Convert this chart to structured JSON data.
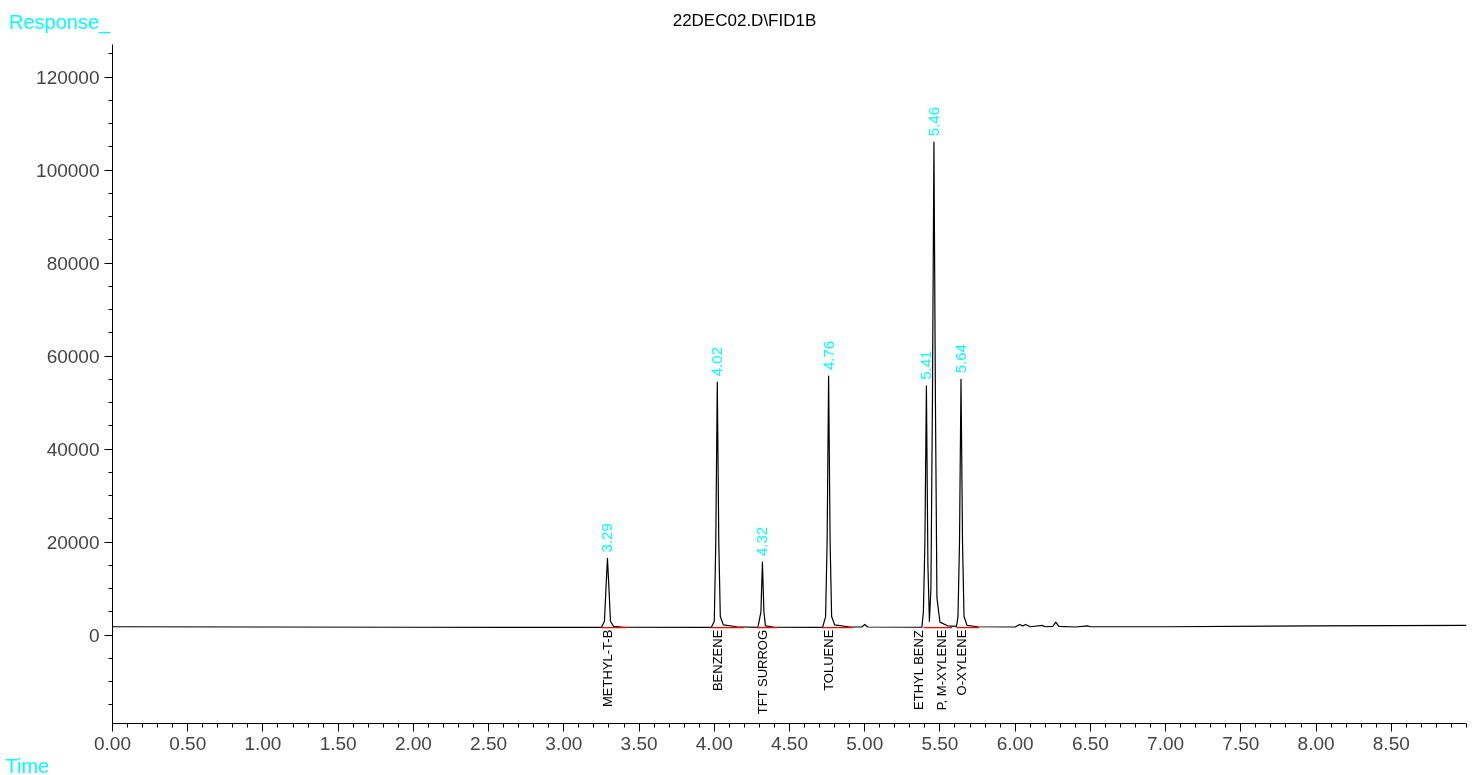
{
  "chart_data": {
    "type": "line",
    "title": "22DEC02.D\\FID1B",
    "xlabel": "Time",
    "ylabel": "Response_",
    "xlim": [
      0,
      9.0
    ],
    "ylim": [
      -19000,
      127000
    ],
    "xticks": [
      {
        "value": 0,
        "label": "0.00"
      },
      {
        "value": 0.5,
        "label": "0.50"
      },
      {
        "value": 1,
        "label": "1.00"
      },
      {
        "value": 1.5,
        "label": "1.50"
      },
      {
        "value": 2,
        "label": "2.00"
      },
      {
        "value": 2.5,
        "label": "2.50"
      },
      {
        "value": 3,
        "label": "3.00"
      },
      {
        "value": 3.5,
        "label": "3.50"
      },
      {
        "value": 4,
        "label": "4.00"
      },
      {
        "value": 4.5,
        "label": "4.50"
      },
      {
        "value": 5,
        "label": "5.00"
      },
      {
        "value": 5.5,
        "label": "5.50"
      },
      {
        "value": 6,
        "label": "6.00"
      },
      {
        "value": 6.5,
        "label": "6.50"
      },
      {
        "value": 7,
        "label": "7.00"
      },
      {
        "value": 7.5,
        "label": "7.50"
      },
      {
        "value": 8,
        "label": "8.00"
      },
      {
        "value": 8.5,
        "label": "8.50"
      }
    ],
    "yticks": [
      0,
      20000,
      40000,
      60000,
      80000,
      100000,
      120000
    ],
    "grid": false,
    "series": [
      {
        "color": "#000000",
        "x": [
          0,
          1.0,
          2.0,
          3.0,
          3.25,
          3.27,
          3.28,
          3.29,
          3.3,
          3.31,
          3.33,
          3.4,
          3.98,
          4.0,
          4.01,
          4.02,
          4.03,
          4.04,
          4.06,
          4.15,
          4.29,
          4.31,
          4.32,
          4.33,
          4.34,
          4.4,
          4.72,
          4.74,
          4.75,
          4.76,
          4.77,
          4.78,
          4.8,
          4.9,
          4.98,
          5.0,
          5.02,
          5.38,
          5.39,
          5.4,
          5.41,
          5.42,
          5.43,
          5.44,
          5.45,
          5.46,
          5.47,
          5.48,
          5.5,
          5.55,
          5.61,
          5.62,
          5.63,
          5.64,
          5.65,
          5.66,
          5.68,
          5.75,
          6.0,
          6.03,
          6.05,
          6.07,
          6.1,
          6.18,
          6.2,
          6.25,
          6.27,
          6.29,
          6.4,
          6.48,
          6.5,
          7.0,
          8.0,
          9.0
        ],
        "values": [
          1800,
          1750,
          1700,
          1650,
          1650,
          3000,
          10000,
          16500,
          10000,
          3000,
          1900,
          1700,
          1650,
          3000,
          20000,
          54400,
          20000,
          4000,
          2200,
          1800,
          1650,
          5000,
          15700,
          5000,
          2000,
          1700,
          1650,
          4000,
          20000,
          55700,
          20000,
          4000,
          2200,
          1750,
          1750,
          2300,
          1750,
          1700,
          5000,
          20000,
          53600,
          15000,
          3000,
          10000,
          50000,
          106000,
          50000,
          8000,
          2800,
          2000,
          1900,
          4000,
          20000,
          55000,
          20000,
          4000,
          2100,
          1800,
          1750,
          2300,
          2000,
          2300,
          1800,
          2100,
          1800,
          1900,
          2800,
          1900,
          1750,
          2000,
          1800,
          1800,
          2000,
          2100
        ]
      },
      {
        "color": "#ff0000",
        "x": [
          3.25,
          3.42
        ],
        "values": [
          1600,
          1600
        ]
      },
      {
        "color": "#ff0000",
        "x": [
          3.98,
          4.2
        ],
        "values": [
          1600,
          1600
        ]
      },
      {
        "color": "#ff0000",
        "x": [
          4.28,
          4.42
        ],
        "values": [
          1600,
          1600
        ]
      },
      {
        "color": "#ff0000",
        "x": [
          4.72,
          4.92
        ],
        "values": [
          1600,
          1600
        ]
      },
      {
        "color": "#ff0000",
        "x": [
          5.39,
          5.58
        ],
        "values": [
          1600,
          1600
        ]
      },
      {
        "color": "#ff0000",
        "x": [
          5.61,
          5.76
        ],
        "values": [
          1600,
          1600
        ]
      }
    ],
    "annotations": [
      {
        "text": "3.29",
        "x": 3.29,
        "y": 16500
      },
      {
        "text": "4.02",
        "x": 4.02,
        "y": 54400
      },
      {
        "text": "4.32",
        "x": 4.32,
        "y": 15700
      },
      {
        "text": "4.76",
        "x": 4.76,
        "y": 55700
      },
      {
        "text": "5.41",
        "x": 5.41,
        "y": 53600
      },
      {
        "text": "5.46",
        "x": 5.46,
        "y": 106000
      },
      {
        "text": "5.64",
        "x": 5.64,
        "y": 55000
      },
      {
        "text": "METHYL-T-B",
        "x": 3.29,
        "y": 1600
      },
      {
        "text": "BENZENE",
        "x": 4.02,
        "y": 1600
      },
      {
        "text": "TFT SURROG",
        "x": 4.32,
        "y": 1600
      },
      {
        "text": "TOLUENE",
        "x": 4.76,
        "y": 1600
      },
      {
        "text": "ETHYL BENZ",
        "x": 5.41,
        "y": 1600
      },
      {
        "text": "P, M-XYLENE",
        "x": 5.46,
        "y": 1600
      },
      {
        "text": "O-XYLENE",
        "x": 5.64,
        "y": 1600
      }
    ]
  }
}
